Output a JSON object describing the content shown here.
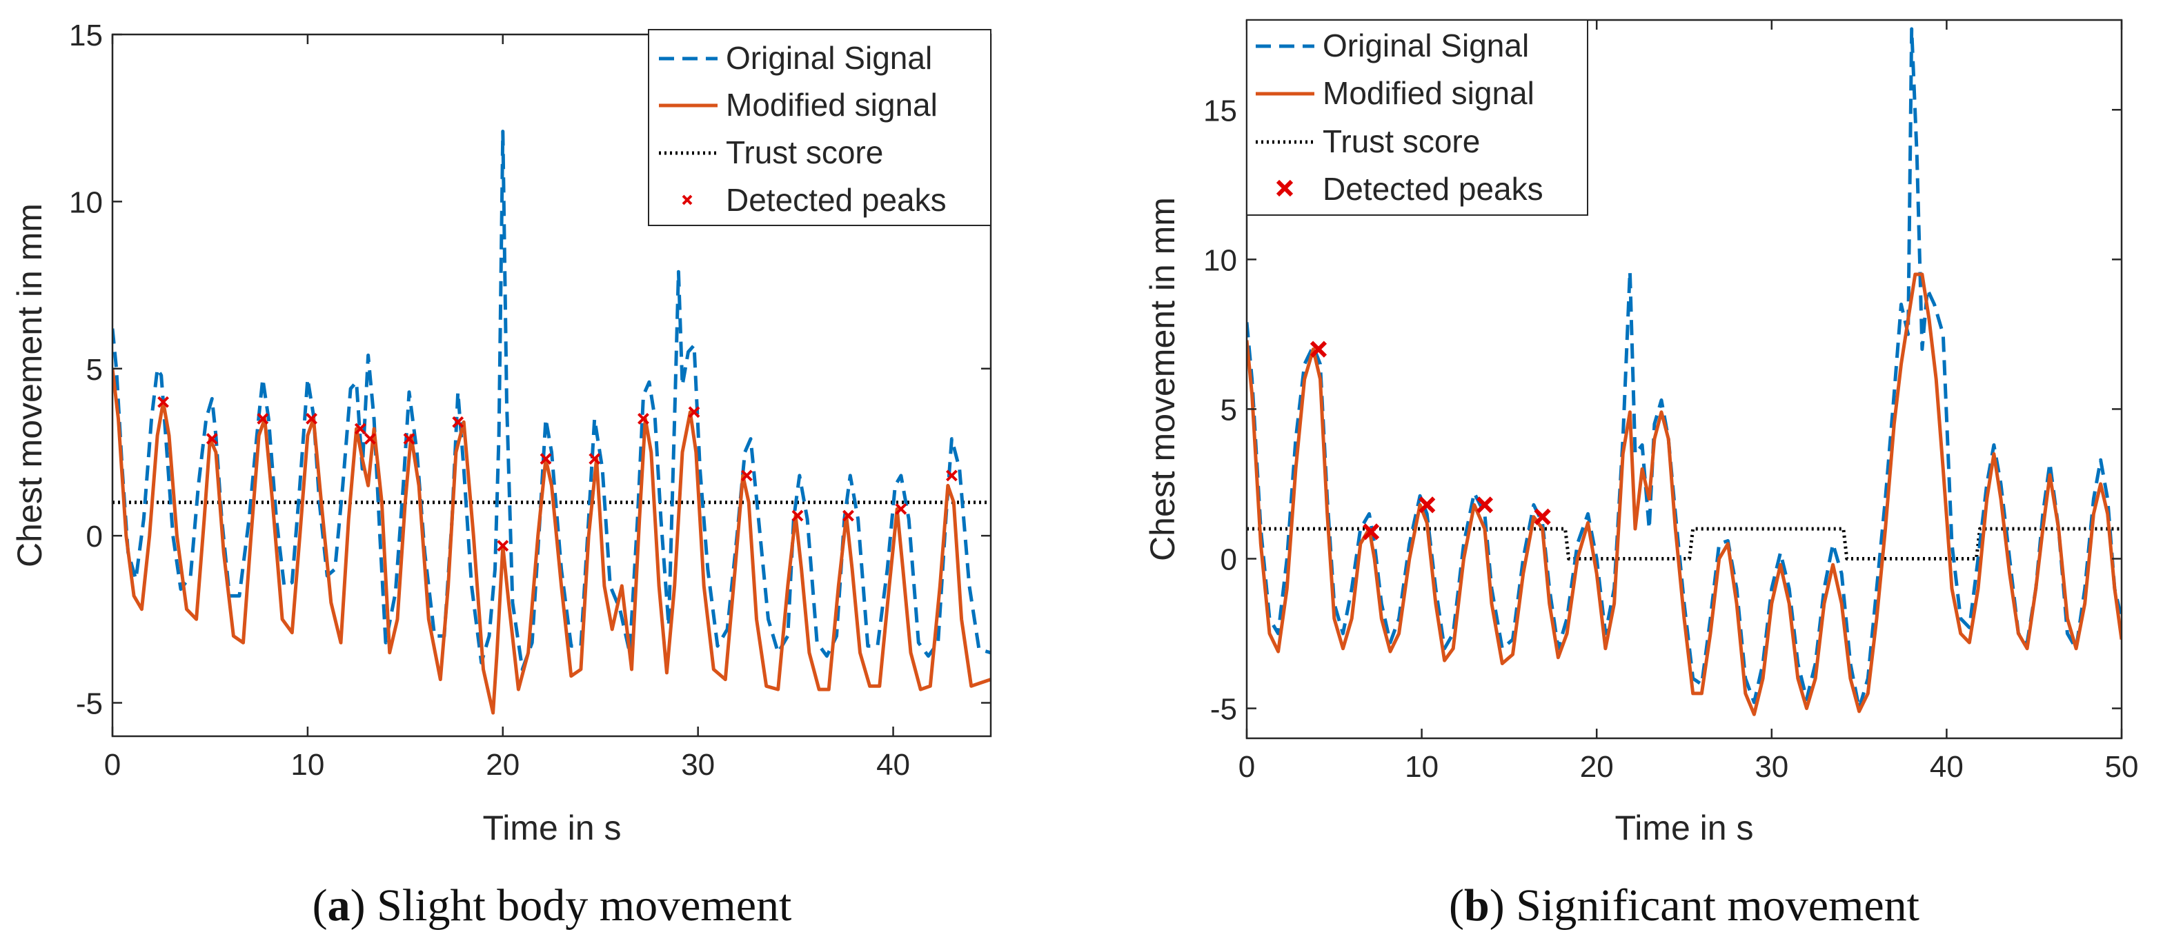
{
  "figure": {
    "colors": {
      "original": "#0072BD",
      "modified": "#D95319",
      "trust": "#000000",
      "peaks": "#E00000",
      "axes": "#262626"
    }
  },
  "chart_data": [
    {
      "type": "line",
      "caption_letter": "a",
      "caption_open": "(",
      "caption_close": ")",
      "caption_text": " Slight body movement",
      "xlabel": "Time in s",
      "ylabel": "Chest movement in mm",
      "xlim": [
        0,
        45
      ],
      "ylim": [
        -6,
        15
      ],
      "xticks": [
        0,
        10,
        20,
        30,
        40
      ],
      "xtick_labels": [
        "0",
        "10",
        "20",
        "30",
        "40"
      ],
      "yticks": [
        -5,
        0,
        5,
        10,
        15
      ],
      "ytick_labels": [
        "-5",
        "0",
        "5",
        "10",
        "15"
      ],
      "legend": [
        "Original Signal",
        "Modified signal",
        "Trust score",
        "Detected peaks"
      ],
      "legend_position": "top-right",
      "series": [
        {
          "name": "Original Signal",
          "style": "dashed",
          "x": [
            0,
            0.2,
            0.5,
            0.8,
            1.2,
            1.6,
            2.0,
            2.3,
            2.5,
            2.7,
            3.1,
            3.5,
            4.0,
            4.4,
            4.8,
            5.1,
            5.3,
            5.6,
            6.0,
            6.5,
            7.0,
            7.4,
            7.7,
            8.0,
            8.4,
            8.8,
            9.2,
            9.6,
            10.0,
            10.3,
            10.6,
            11.0,
            11.4,
            11.8,
            12.2,
            12.5,
            12.8,
            13.1,
            13.4,
            13.7,
            14.0,
            14.5,
            14.9,
            15.2,
            15.6,
            16.0,
            16.5,
            17.0,
            17.4,
            17.7,
            18.0,
            18.4,
            18.9,
            19.3,
            19.6,
            19.8,
            20.0,
            20.2,
            20.5,
            21.0,
            21.5,
            21.9,
            22.2,
            22.5,
            23.0,
            23.5,
            24.0,
            24.4,
            24.7,
            25.1,
            25.5,
            26.0,
            26.5,
            26.9,
            27.2,
            27.5,
            27.8,
            28.1,
            28.5,
            28.8,
            29.0,
            29.2,
            29.5,
            29.8,
            30.1,
            30.5,
            31.0,
            31.5,
            32.0,
            32.4,
            32.7,
            33.1,
            33.6,
            34.1,
            34.6,
            34.9,
            35.2,
            35.6,
            36.1,
            36.6,
            37.1,
            37.5,
            37.8,
            38.2,
            38.7,
            39.2,
            39.7,
            40.1,
            40.4,
            40.8,
            41.3,
            41.8,
            42.3,
            42.7,
            43.0,
            43.4,
            43.9,
            44.4,
            45.0
          ],
          "y": [
            6.2,
            5.0,
            2.0,
            -0.5,
            -1.3,
            0.5,
            3.5,
            5.0,
            4.8,
            3.2,
            0,
            -1.6,
            -1.2,
            1.5,
            3.5,
            4.1,
            3.0,
            0.5,
            -1.8,
            -1.8,
            0.5,
            3.0,
            4.7,
            3.5,
            0.5,
            -1.5,
            -1.4,
            1.5,
            4.7,
            3.6,
            1.0,
            -1.2,
            -1.0,
            1.5,
            4.4,
            4.6,
            2.0,
            5.4,
            3.5,
            0,
            -3.2,
            -1.7,
            1.5,
            4.3,
            2.5,
            -0.5,
            -3.0,
            -3.0,
            0.5,
            4.3,
            2.0,
            -1.5,
            -3.8,
            -3.0,
            -1.0,
            3.0,
            12.1,
            4.0,
            -2.0,
            -4.0,
            -3.2,
            0.5,
            3.5,
            2.5,
            -1.0,
            -3.3,
            -3.3,
            0.5,
            3.5,
            2.0,
            -1.5,
            -2.2,
            -3.5,
            0.5,
            4.2,
            4.6,
            3.5,
            0.5,
            -2.7,
            3.5,
            7.9,
            4.5,
            5.5,
            5.7,
            2.0,
            -1.0,
            -3.3,
            -2.8,
            0,
            2.5,
            2.9,
            0.5,
            -2.5,
            -3.5,
            -3.0,
            0.5,
            1.8,
            0.5,
            -3.2,
            -3.6,
            -3.0,
            0.5,
            1.8,
            0.5,
            -3.3,
            -3.3,
            -1.0,
            1.5,
            1.8,
            0.5,
            -3.2,
            -3.6,
            -3.2,
            0.5,
            2.9,
            2.0,
            -1.5,
            -3.4,
            -3.5
          ]
        },
        {
          "name": "Modified signal",
          "style": "solid",
          "x": [
            0,
            0.3,
            0.7,
            1.1,
            1.5,
            1.9,
            2.3,
            2.6,
            2.9,
            3.3,
            3.8,
            4.3,
            4.7,
            5.0,
            5.3,
            5.7,
            6.2,
            6.7,
            7.1,
            7.5,
            7.8,
            8.2,
            8.7,
            9.2,
            9.6,
            10.0,
            10.3,
            10.7,
            11.2,
            11.7,
            12.1,
            12.5,
            12.8,
            13.1,
            13.4,
            13.8,
            14.2,
            14.6,
            15.0,
            15.3,
            15.7,
            16.2,
            16.8,
            17.2,
            17.6,
            18.0,
            18.5,
            19.0,
            19.5,
            19.7,
            20.0,
            20.3,
            20.8,
            21.3,
            21.8,
            22.2,
            22.5,
            23.0,
            23.5,
            24.0,
            24.4,
            24.8,
            25.2,
            25.6,
            26.1,
            26.6,
            27.0,
            27.3,
            27.6,
            28.0,
            28.4,
            28.8,
            29.2,
            29.6,
            29.9,
            30.3,
            30.8,
            31.4,
            31.9,
            32.3,
            32.6,
            33.0,
            33.5,
            34.1,
            34.6,
            35.0,
            35.3,
            35.7,
            36.2,
            36.7,
            37.2,
            37.6,
            37.9,
            38.3,
            38.8,
            39.3,
            39.8,
            40.2,
            40.5,
            40.9,
            41.4,
            41.9,
            42.4,
            42.8,
            43.1,
            43.5,
            44.0,
            44.5,
            45.0
          ],
          "y": [
            5.0,
            3.5,
            0,
            -1.8,
            -2.2,
            0,
            3.0,
            4.0,
            3.0,
            0,
            -2.2,
            -2.5,
            0.5,
            2.9,
            2.5,
            -0.5,
            -3.0,
            -3.2,
            0,
            3.0,
            3.5,
            1.0,
            -2.5,
            -2.9,
            0,
            3.0,
            3.5,
            1.0,
            -2.0,
            -3.2,
            0.5,
            3.2,
            2.3,
            1.5,
            3.2,
            1.0,
            -3.5,
            -2.5,
            1.0,
            3.0,
            1.5,
            -2.5,
            -4.3,
            -1.5,
            2.5,
            3.4,
            0,
            -4.0,
            -5.3,
            -3.5,
            -0.3,
            -2.0,
            -4.6,
            -3.5,
            0,
            2.3,
            1.5,
            -1.5,
            -4.2,
            -4.0,
            0,
            2.3,
            -1.5,
            -2.8,
            -1.5,
            -4.0,
            0.5,
            3.5,
            2.5,
            -1.5,
            -4.1,
            -1.5,
            2.5,
            3.7,
            2.5,
            -1.5,
            -4.0,
            -4.3,
            -1.0,
            1.8,
            1.0,
            -2.5,
            -4.5,
            -4.6,
            -1.5,
            0.6,
            -1.0,
            -3.5,
            -4.6,
            -4.6,
            -1.5,
            0.6,
            -1.0,
            -3.5,
            -4.5,
            -4.5,
            -1.5,
            0.8,
            -1.0,
            -3.5,
            -4.6,
            -4.5,
            -1.5,
            1.5,
            1.0,
            -2.5,
            -4.5,
            -4.4,
            -4.3
          ]
        },
        {
          "name": "Trust score",
          "style": "dotted",
          "x": [
            0,
            45
          ],
          "y": [
            1,
            1
          ]
        },
        {
          "name": "Detected peaks",
          "style": "markers",
          "x": [
            2.6,
            5.1,
            7.7,
            10.2,
            12.7,
            13.2,
            15.2,
            17.7,
            20.0,
            22.2,
            24.7,
            27.2,
            29.8,
            32.5,
            35.1,
            37.7,
            40.4,
            43.0
          ],
          "y": [
            4.0,
            2.9,
            3.5,
            3.5,
            3.2,
            2.9,
            2.9,
            3.4,
            -0.3,
            2.3,
            2.3,
            3.5,
            3.7,
            1.8,
            0.6,
            0.6,
            0.8,
            1.8
          ]
        }
      ]
    },
    {
      "type": "line",
      "caption_letter": "b",
      "caption_open": "(",
      "caption_close": ")",
      "caption_text": " Significant movement",
      "xlabel": "Time in s",
      "ylabel": "Chest movement in mm",
      "xlim": [
        0,
        50
      ],
      "ylim": [
        -6,
        18
      ],
      "xticks": [
        0,
        10,
        20,
        30,
        40,
        50
      ],
      "xtick_labels": [
        "0",
        "10",
        "20",
        "30",
        "40",
        "50"
      ],
      "yticks": [
        -5,
        0,
        5,
        10,
        15
      ],
      "ytick_labels": [
        "-5",
        "0",
        "5",
        "10",
        "15"
      ],
      "legend": [
        "Original Signal",
        "Modified signal",
        "Trust score",
        "Detected peaks"
      ],
      "legend_position": "top-left",
      "series": [
        {
          "name": "Original Signal",
          "style": "dashed",
          "x": [
            0,
            0.3,
            0.8,
            1.3,
            1.8,
            2.3,
            2.8,
            3.3,
            3.8,
            4.2,
            4.6,
            5.0,
            5.5,
            6.0,
            6.5,
            7.0,
            7.3,
            7.7,
            8.2,
            8.7,
            9.3,
            9.9,
            10.3,
            10.8,
            11.3,
            11.8,
            12.4,
            13.0,
            13.6,
            14.0,
            14.6,
            15.2,
            15.8,
            16.4,
            16.9,
            17.3,
            17.8,
            18.3,
            18.9,
            19.5,
            20.0,
            20.5,
            21.0,
            21.5,
            21.9,
            22.2,
            22.6,
            23.0,
            23.3,
            23.7,
            24.1,
            24.5,
            25.0,
            25.5,
            26.0,
            26.5,
            27.0,
            27.5,
            28.0,
            28.5,
            29.0,
            29.5,
            30.0,
            30.5,
            31.0,
            31.5,
            32.0,
            32.5,
            33.0,
            33.5,
            34.0,
            34.5,
            35.0,
            35.5,
            36.0,
            36.5,
            37.0,
            37.4,
            37.8,
            38.0,
            38.3,
            38.6,
            38.9,
            39.3,
            39.8,
            40.3,
            40.8,
            41.3,
            41.8,
            42.3,
            42.7,
            43.1,
            43.6,
            44.1,
            44.6,
            45.1,
            45.5,
            45.9,
            46.4,
            46.9,
            47.4,
            47.9,
            48.4,
            48.8,
            49.2,
            49.6,
            50.0
          ],
          "y": [
            7.9,
            6.0,
            1.0,
            -2.0,
            -2.5,
            0,
            4.0,
            6.5,
            7.1,
            6.5,
            2.0,
            -1.5,
            -2.5,
            -1.0,
            1.0,
            1.5,
            0.5,
            -1.5,
            -2.8,
            -2.0,
            0.5,
            2.1,
            1.5,
            -1.0,
            -3.0,
            -2.5,
            0.5,
            2.2,
            1.5,
            -1.0,
            -3.0,
            -2.7,
            0,
            1.8,
            1.2,
            -1.0,
            -3.0,
            -2.0,
            0.5,
            1.5,
            0,
            -2.5,
            -1.0,
            4.0,
            9.6,
            3.5,
            3.8,
            1.0,
            4.5,
            5.3,
            4.0,
            1.5,
            -1.5,
            -4.0,
            -4.2,
            -2.0,
            0.5,
            0.6,
            -1.0,
            -4.0,
            -4.8,
            -3.5,
            -1.0,
            0.2,
            -1.0,
            -3.5,
            -4.7,
            -3.5,
            -1.0,
            0.5,
            -0.5,
            -3.5,
            -5.0,
            -4.0,
            -1.0,
            2.0,
            5.5,
            8.5,
            7.5,
            17.7,
            13.5,
            7.0,
            9.0,
            8.5,
            7.5,
            0.5,
            -2.0,
            -2.3,
            0,
            2.5,
            3.8,
            2.5,
            0,
            -2.5,
            -2.8,
            -1.0,
            1.5,
            3.2,
            1.0,
            -2.5,
            -3.0,
            -1.0,
            2.0,
            3.3,
            2.0,
            -1.0,
            -2.0
          ]
        },
        {
          "name": "Modified signal",
          "style": "solid",
          "x": [
            0,
            0.3,
            0.8,
            1.3,
            1.8,
            2.3,
            2.8,
            3.3,
            3.8,
            4.2,
            4.6,
            5.0,
            5.5,
            6.0,
            6.5,
            7.0,
            7.3,
            7.7,
            8.2,
            8.7,
            9.3,
            9.9,
            10.3,
            10.8,
            11.3,
            11.8,
            12.4,
            13.0,
            13.6,
            14.0,
            14.6,
            15.2,
            15.8,
            16.4,
            16.9,
            17.3,
            17.8,
            18.3,
            18.9,
            19.5,
            20.0,
            20.5,
            21.0,
            21.5,
            21.9,
            22.2,
            22.6,
            23.0,
            23.3,
            23.7,
            24.1,
            24.5,
            25.0,
            25.5,
            26.0,
            26.5,
            27.0,
            27.5,
            28.0,
            28.5,
            29.0,
            29.5,
            30.0,
            30.5,
            31.0,
            31.5,
            32.0,
            32.5,
            33.0,
            33.5,
            34.0,
            34.5,
            35.0,
            35.5,
            36.0,
            36.5,
            37.0,
            37.4,
            37.8,
            38.2,
            38.6,
            39.0,
            39.4,
            39.8,
            40.3,
            40.8,
            41.3,
            41.8,
            42.3,
            42.7,
            43.1,
            43.6,
            44.1,
            44.6,
            45.1,
            45.5,
            45.9,
            46.4,
            46.9,
            47.4,
            47.9,
            48.4,
            48.8,
            49.2,
            49.6,
            50.0
          ],
          "y": [
            7.3,
            5.5,
            0.5,
            -2.5,
            -3.1,
            -1.0,
            3.0,
            6.0,
            7.0,
            6.0,
            1.5,
            -2.0,
            -3.0,
            -2.0,
            0.5,
            1.0,
            0,
            -2.0,
            -3.1,
            -2.5,
            0,
            1.8,
            1.2,
            -1.5,
            -3.4,
            -3.0,
            0,
            1.8,
            1.0,
            -1.5,
            -3.5,
            -3.2,
            -0.5,
            1.4,
            1.0,
            -1.5,
            -3.3,
            -2.5,
            0,
            1.2,
            -0.5,
            -3.0,
            -1.5,
            3.5,
            4.9,
            1.0,
            3.0,
            2.0,
            4.0,
            4.9,
            4.0,
            1.0,
            -2.0,
            -4.5,
            -4.5,
            -2.5,
            0,
            0.5,
            -1.5,
            -4.5,
            -5.2,
            -4.0,
            -1.5,
            -0.2,
            -1.5,
            -4.0,
            -5.0,
            -4.0,
            -1.5,
            -0.2,
            -1.5,
            -4.0,
            -5.1,
            -4.5,
            -2.0,
            1.0,
            4.5,
            6.5,
            8.0,
            9.5,
            9.5,
            8.0,
            6.0,
            3.0,
            -1.0,
            -2.5,
            -2.8,
            -1.0,
            2.0,
            3.5,
            2.0,
            -0.5,
            -2.5,
            -3.0,
            -1.0,
            1.0,
            2.8,
            1.0,
            -2.0,
            -3.0,
            -1.5,
            1.5,
            2.5,
            1.5,
            -1.0,
            -2.7
          ]
        },
        {
          "name": "Trust score",
          "style": "dotted",
          "x": [
            0,
            18.2,
            18.4,
            25.3,
            25.5,
            34.1,
            34.3,
            41.7,
            41.9,
            50
          ],
          "y": [
            1,
            1,
            0,
            0,
            1,
            1,
            0,
            0,
            1,
            1
          ]
        },
        {
          "name": "Detected peaks",
          "style": "markers",
          "x": [
            4.1,
            7.1,
            10.3,
            13.6,
            16.9
          ],
          "y": [
            7.0,
            0.9,
            1.8,
            1.8,
            1.4
          ]
        }
      ]
    }
  ]
}
